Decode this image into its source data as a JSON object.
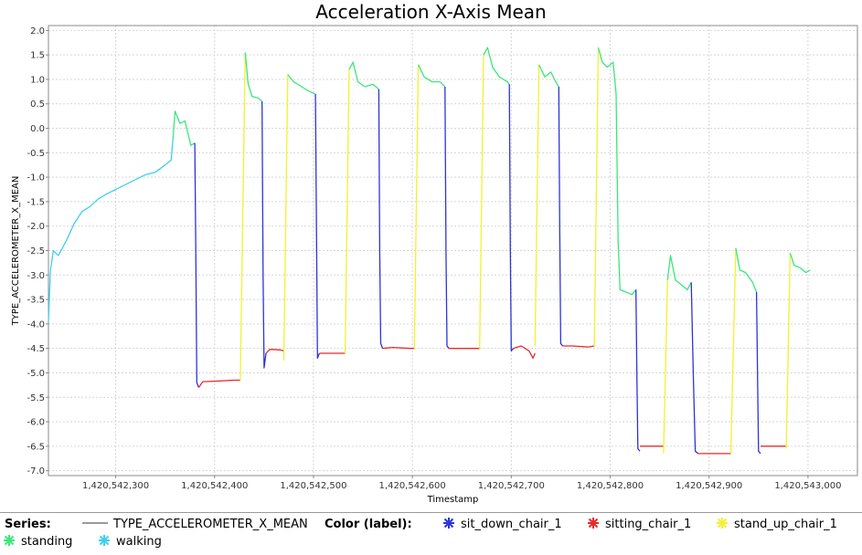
{
  "chart_data": {
    "type": "line",
    "title": "Acceleration X-Axis Mean",
    "xlabel": "Timestamp",
    "ylabel": "TYPE_ACCELEROMETER_X_MEAN",
    "xlim": [
      1420542232,
      1420543050
    ],
    "ylim": [
      -7.1,
      2.1
    ],
    "x_ticks": [
      1420542300,
      1420542400,
      1420542500,
      1420542600,
      1420542700,
      1420542800,
      1420542900,
      1420543000
    ],
    "x_tick_labels": [
      "1,420,542,300",
      "1,420,542,400",
      "1,420,542,500",
      "1,420,542,600",
      "1,420,542,700",
      "1,420,542,800",
      "1,420,542,900",
      "1,420,543,000"
    ],
    "y_ticks": [
      2.0,
      1.5,
      1.0,
      0.5,
      0.0,
      -0.5,
      -1.0,
      -1.5,
      -2.0,
      -2.5,
      -3.0,
      -3.5,
      -4.0,
      -4.5,
      -5.0,
      -5.5,
      -6.0,
      -6.5,
      -7.0
    ],
    "y_tick_labels": [
      "2.0",
      "1.5",
      "1.0",
      "0.5",
      "0.0",
      "-0.5",
      "-1.0",
      "-1.5",
      "-2.0",
      "-2.5",
      "-3.0",
      "-3.5",
      "-4.0",
      "-4.5",
      "-5.0",
      "-5.5",
      "-6.0",
      "-6.5",
      "-7.0"
    ],
    "grid": true,
    "colors": {
      "walking": "#40cfee",
      "standing": "#38e87a",
      "sit_down_chair_1": "#2b35d8",
      "sitting_chair_1": "#e62b2b",
      "stand_up_chair_1": "#f5f02e"
    },
    "segments": [
      {
        "label": "walking",
        "points": [
          [
            1420542232,
            -3.95
          ],
          [
            1420542234,
            -2.9
          ],
          [
            1420542237,
            -2.5
          ],
          [
            1420542242,
            -2.6
          ],
          [
            1420542250,
            -2.3
          ],
          [
            1420542258,
            -1.95
          ],
          [
            1420542266,
            -1.7
          ],
          [
            1420542274,
            -1.6
          ],
          [
            1420542282,
            -1.45
          ],
          [
            1420542290,
            -1.35
          ],
          [
            1420542300,
            -1.25
          ],
          [
            1420542310,
            -1.15
          ],
          [
            1420542320,
            -1.05
          ],
          [
            1420542330,
            -0.95
          ],
          [
            1420542340,
            -0.9
          ],
          [
            1420542350,
            -0.75
          ],
          [
            1420542356,
            -0.65
          ],
          [
            1420542358,
            -0.2
          ]
        ]
      },
      {
        "label": "standing",
        "points": [
          [
            1420542358,
            -0.2
          ],
          [
            1420542360,
            0.35
          ],
          [
            1420542365,
            0.1
          ],
          [
            1420542370,
            0.15
          ],
          [
            1420542376,
            -0.35
          ],
          [
            1420542380,
            -0.3
          ]
        ]
      },
      {
        "label": "sit_down_chair_1",
        "points": [
          [
            1420542380,
            -0.3
          ],
          [
            1420542381,
            -2.5
          ],
          [
            1420542382,
            -5.2
          ],
          [
            1420542384,
            -5.3
          ]
        ]
      },
      {
        "label": "sitting_chair_1",
        "points": [
          [
            1420542384,
            -5.3
          ],
          [
            1420542388,
            -5.18
          ],
          [
            1420542400,
            -5.17
          ],
          [
            1420542420,
            -5.15
          ],
          [
            1420542426,
            -5.15
          ]
        ]
      },
      {
        "label": "stand_up_chair_1",
        "points": [
          [
            1420542426,
            -5.15
          ],
          [
            1420542431,
            1.55
          ]
        ]
      },
      {
        "label": "standing",
        "points": [
          [
            1420542431,
            1.55
          ],
          [
            1420542434,
            0.9
          ],
          [
            1420542438,
            0.65
          ],
          [
            1420542444,
            0.62
          ],
          [
            1420542448,
            0.55
          ]
        ]
      },
      {
        "label": "sit_down_chair_1",
        "points": [
          [
            1420542448,
            0.55
          ],
          [
            1420542449,
            -3.0
          ],
          [
            1420542450,
            -4.9
          ],
          [
            1420542452,
            -4.6
          ]
        ]
      },
      {
        "label": "sitting_chair_1",
        "points": [
          [
            1420542452,
            -4.6
          ],
          [
            1420542456,
            -4.52
          ],
          [
            1420542466,
            -4.53
          ],
          [
            1420542470,
            -4.55
          ]
        ]
      },
      {
        "label": "stand_up_chair_1",
        "points": [
          [
            1420542470,
            -4.75
          ],
          [
            1420542474,
            1.1
          ]
        ]
      },
      {
        "label": "standing",
        "points": [
          [
            1420542474,
            1.1
          ],
          [
            1420542480,
            0.95
          ],
          [
            1420542488,
            0.85
          ],
          [
            1420542496,
            0.75
          ],
          [
            1420542502,
            0.7
          ]
        ]
      },
      {
        "label": "sit_down_chair_1",
        "points": [
          [
            1420542502,
            0.7
          ],
          [
            1420542503,
            -2.0
          ],
          [
            1420542504,
            -4.7
          ],
          [
            1420542506,
            -4.6
          ]
        ]
      },
      {
        "label": "sitting_chair_1",
        "points": [
          [
            1420542506,
            -4.6
          ],
          [
            1420542515,
            -4.6
          ],
          [
            1420542528,
            -4.6
          ],
          [
            1420542532,
            -4.6
          ]
        ]
      },
      {
        "label": "stand_up_chair_1",
        "points": [
          [
            1420542532,
            -4.6
          ],
          [
            1420542536,
            1.2
          ]
        ]
      },
      {
        "label": "standing",
        "points": [
          [
            1420542536,
            1.2
          ],
          [
            1420542540,
            1.35
          ],
          [
            1420542545,
            0.95
          ],
          [
            1420542552,
            0.85
          ],
          [
            1420542560,
            0.9
          ],
          [
            1420542566,
            0.8
          ]
        ]
      },
      {
        "label": "sit_down_chair_1",
        "points": [
          [
            1420542566,
            0.8
          ],
          [
            1420542567,
            -2.5
          ],
          [
            1420542568,
            -4.4
          ],
          [
            1420542570,
            -4.5
          ]
        ]
      },
      {
        "label": "sitting_chair_1",
        "points": [
          [
            1420542570,
            -4.5
          ],
          [
            1420542580,
            -4.48
          ],
          [
            1420542598,
            -4.5
          ],
          [
            1420542602,
            -4.5
          ]
        ]
      },
      {
        "label": "stand_up_chair_1",
        "points": [
          [
            1420542602,
            -4.5
          ],
          [
            1420542606,
            1.3
          ]
        ]
      },
      {
        "label": "standing",
        "points": [
          [
            1420542606,
            1.3
          ],
          [
            1420542612,
            1.05
          ],
          [
            1420542620,
            0.95
          ],
          [
            1420542628,
            0.95
          ],
          [
            1420542633,
            0.85
          ]
        ]
      },
      {
        "label": "sit_down_chair_1",
        "points": [
          [
            1420542633,
            0.85
          ],
          [
            1420542634,
            -2.5
          ],
          [
            1420542635,
            -4.45
          ],
          [
            1420542637,
            -4.5
          ]
        ]
      },
      {
        "label": "sitting_chair_1",
        "points": [
          [
            1420542637,
            -4.5
          ],
          [
            1420542650,
            -4.5
          ],
          [
            1420542664,
            -4.5
          ],
          [
            1420542668,
            -4.5
          ]
        ]
      },
      {
        "label": "stand_up_chair_1",
        "points": [
          [
            1420542668,
            -4.5
          ],
          [
            1420542672,
            1.5
          ]
        ]
      },
      {
        "label": "standing",
        "points": [
          [
            1420542672,
            1.5
          ],
          [
            1420542676,
            1.65
          ],
          [
            1420542681,
            1.25
          ],
          [
            1420542688,
            1.05
          ],
          [
            1420542696,
            0.95
          ],
          [
            1420542698,
            0.9
          ]
        ]
      },
      {
        "label": "sit_down_chair_1",
        "points": [
          [
            1420542698,
            0.9
          ],
          [
            1420542699,
            -2.5
          ],
          [
            1420542700,
            -4.55
          ],
          [
            1420542702,
            -4.5
          ]
        ]
      },
      {
        "label": "sitting_chair_1",
        "points": [
          [
            1420542702,
            -4.5
          ],
          [
            1420542710,
            -4.45
          ],
          [
            1420542718,
            -4.55
          ],
          [
            1420542722,
            -4.7
          ],
          [
            1420542724,
            -4.6
          ]
        ]
      },
      {
        "label": "stand_up_chair_1",
        "points": [
          [
            1420542724,
            -4.45
          ],
          [
            1420542728,
            1.3
          ]
        ]
      },
      {
        "label": "standing",
        "points": [
          [
            1420542728,
            1.3
          ],
          [
            1420542734,
            1.05
          ],
          [
            1420542740,
            1.15
          ],
          [
            1420542745,
            0.95
          ],
          [
            1420542748,
            0.85
          ]
        ]
      },
      {
        "label": "sit_down_chair_1",
        "points": [
          [
            1420542748,
            0.85
          ],
          [
            1420542749,
            -2.0
          ],
          [
            1420542750,
            -4.4
          ],
          [
            1420542752,
            -4.45
          ]
        ]
      },
      {
        "label": "sitting_chair_1",
        "points": [
          [
            1420542752,
            -4.45
          ],
          [
            1420542762,
            -4.45
          ],
          [
            1420542778,
            -4.47
          ],
          [
            1420542784,
            -4.45
          ]
        ]
      },
      {
        "label": "stand_up_chair_1",
        "points": [
          [
            1420542784,
            -4.45
          ],
          [
            1420542788,
            1.65
          ]
        ]
      },
      {
        "label": "standing",
        "points": [
          [
            1420542788,
            1.65
          ],
          [
            1420542792,
            1.35
          ],
          [
            1420542797,
            1.25
          ],
          [
            1420542803,
            1.35
          ],
          [
            1420542806,
            0.7
          ],
          [
            1420542808,
            -2.3
          ],
          [
            1420542810,
            -3.3
          ],
          [
            1420542816,
            -3.35
          ],
          [
            1420542822,
            -3.4
          ],
          [
            1420542826,
            -3.3
          ]
        ]
      },
      {
        "label": "sit_down_chair_1",
        "points": [
          [
            1420542826,
            -3.3
          ],
          [
            1420542827,
            -5.0
          ],
          [
            1420542828,
            -6.55
          ],
          [
            1420542830,
            -6.6
          ]
        ]
      },
      {
        "label": "sitting_chair_1",
        "points": [
          [
            1420542830,
            -6.5
          ],
          [
            1420542840,
            -6.5
          ],
          [
            1420542850,
            -6.5
          ],
          [
            1420542854,
            -6.5
          ]
        ]
      },
      {
        "label": "stand_up_chair_1",
        "points": [
          [
            1420542854,
            -6.65
          ],
          [
            1420542858,
            -3.1
          ]
        ]
      },
      {
        "label": "standing",
        "points": [
          [
            1420542858,
            -3.1
          ],
          [
            1420542861,
            -2.6
          ],
          [
            1420542866,
            -3.1
          ],
          [
            1420542872,
            -3.2
          ],
          [
            1420542878,
            -3.3
          ],
          [
            1420542882,
            -3.15
          ]
        ]
      },
      {
        "label": "sit_down_chair_1",
        "points": [
          [
            1420542882,
            -3.15
          ],
          [
            1420542884,
            -5.0
          ],
          [
            1420542886,
            -6.6
          ],
          [
            1420542889,
            -6.65
          ]
        ]
      },
      {
        "label": "sitting_chair_1",
        "points": [
          [
            1420542889,
            -6.65
          ],
          [
            1420542902,
            -6.65
          ],
          [
            1420542918,
            -6.65
          ],
          [
            1420542922,
            -6.65
          ]
        ]
      },
      {
        "label": "stand_up_chair_1",
        "points": [
          [
            1420542922,
            -6.65
          ],
          [
            1420542927,
            -2.45
          ]
        ]
      },
      {
        "label": "standing",
        "points": [
          [
            1420542927,
            -2.45
          ],
          [
            1420542931,
            -2.9
          ],
          [
            1420542937,
            -2.95
          ],
          [
            1420542944,
            -3.15
          ],
          [
            1420542948,
            -3.35
          ]
        ]
      },
      {
        "label": "sit_down_chair_1",
        "points": [
          [
            1420542948,
            -3.35
          ],
          [
            1420542949,
            -5.0
          ],
          [
            1420542950,
            -6.6
          ],
          [
            1420542952,
            -6.65
          ]
        ]
      },
      {
        "label": "sitting_chair_1",
        "points": [
          [
            1420542952,
            -6.5
          ],
          [
            1420542962,
            -6.5
          ],
          [
            1420542974,
            -6.5
          ],
          [
            1420542978,
            -6.5
          ]
        ]
      },
      {
        "label": "stand_up_chair_1",
        "points": [
          [
            1420542978,
            -6.55
          ],
          [
            1420542982,
            -2.55
          ]
        ]
      },
      {
        "label": "standing",
        "points": [
          [
            1420542982,
            -2.55
          ],
          [
            1420542986,
            -2.8
          ],
          [
            1420542992,
            -2.85
          ],
          [
            1420542998,
            -2.95
          ],
          [
            1420543002,
            -2.9
          ]
        ]
      }
    ]
  },
  "legend": {
    "series_label": "Series:",
    "series_name": "TYPE_ACCELEROMETER_X_MEAN",
    "color_label": "Color (label):",
    "items": [
      {
        "name": "sit_down_chair_1",
        "color": "#2b35d8"
      },
      {
        "name": "sitting_chair_1",
        "color": "#e62b2b"
      },
      {
        "name": "stand_up_chair_1",
        "color": "#f5f02e"
      },
      {
        "name": "standing",
        "color": "#38e87a"
      },
      {
        "name": "walking",
        "color": "#40cfee"
      }
    ]
  }
}
